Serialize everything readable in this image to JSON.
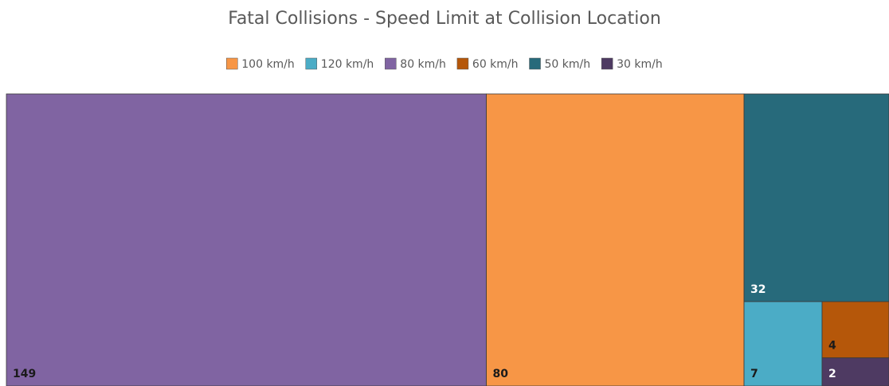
{
  "chart_data": {
    "type": "treemap",
    "title": "Fatal Collisions - Speed Limit at Collision Location",
    "categories": [
      "100 km/h",
      "120 km/h",
      "80 km/h",
      "60 km/h",
      "50 km/h",
      "30 km/h"
    ],
    "values": [
      80,
      7,
      149,
      4,
      32,
      2
    ],
    "colors": [
      "#f79646",
      "#4bacc6",
      "#8064a2",
      "#b5570a",
      "#276a7b",
      "#4e3a62"
    ],
    "legend": "top"
  }
}
